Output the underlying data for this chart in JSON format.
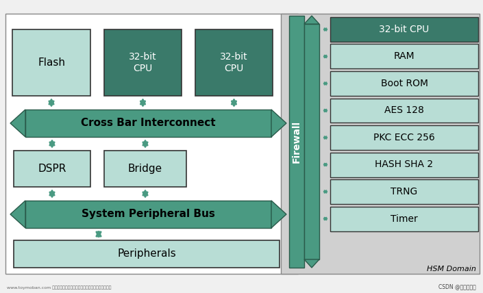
{
  "fig_width": 7.05,
  "fig_height": 4.28,
  "dpi": 100,
  "bg_color": "#f0f0f0",
  "left_bg": "#ffffff",
  "right_bg": "#d0d0d0",
  "teal_dark": "#4a9a82",
  "teal_mid": "#5aaa92",
  "teal_box_fill": "#b8ddd5",
  "teal_box_dark": "#3a7a6a",
  "box_edge": "#2a5a4a",
  "crossbar_label": "Cross Bar Interconnect",
  "spbus_label": "System Peripheral Bus",
  "firewall_label": "Firewall",
  "hsm_domain_label": "HSM Domain",
  "right_boxes": [
    "32-bit CPU",
    "RAM",
    "Boot ROM",
    "AES 128",
    "PKC ECC 256",
    "HASH SHA 2",
    "TRNG",
    "Timer"
  ],
  "right_box_fill_dark": "#3a7a6a",
  "right_box_fill_light": "#b8ddd5",
  "right_box_edge": "#2a5a4a",
  "arrow_color": "#4a9a82",
  "watermark1": "www.toymoban.com 网络图片仅供展示，非作者，如有侵权请联系删除。",
  "watermark2": "CSDN @快乐的机图"
}
